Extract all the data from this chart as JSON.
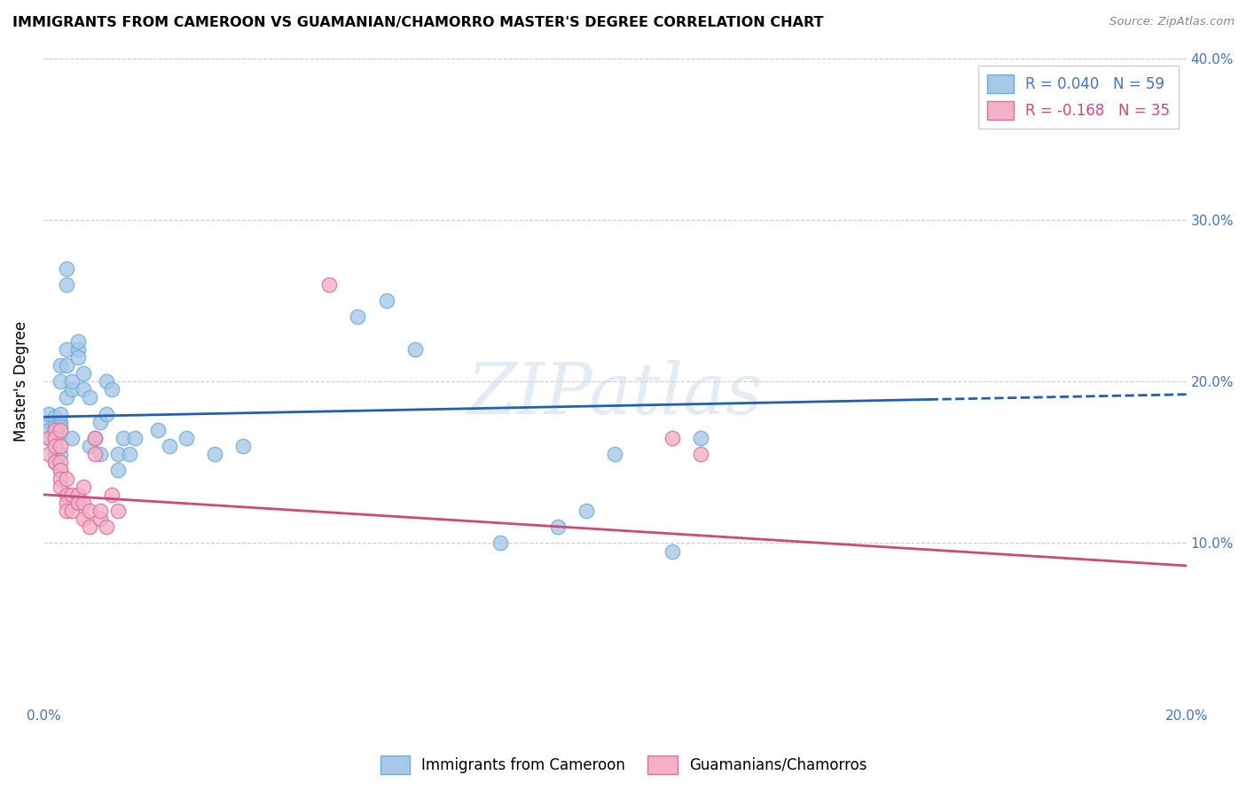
{
  "title": "IMMIGRANTS FROM CAMEROON VS GUAMANIAN/CHAMORRO MASTER'S DEGREE CORRELATION CHART",
  "source": "Source: ZipAtlas.com",
  "ylabel": "Master's Degree",
  "xlim": [
    0.0,
    0.2
  ],
  "ylim": [
    0.0,
    0.4
  ],
  "xticks": [
    0.0,
    0.05,
    0.1,
    0.15,
    0.2
  ],
  "yticks": [
    0.0,
    0.1,
    0.2,
    0.3,
    0.4
  ],
  "xtick_labels": [
    "0.0%",
    "",
    "",
    "",
    "20.0%"
  ],
  "ytick_labels_right": [
    "",
    "10.0%",
    "20.0%",
    "30.0%",
    "40.0%"
  ],
  "legend1_R": "R = 0.040",
  "legend1_N": "N = 59",
  "legend2_R": "R = -0.168",
  "legend2_N": "N = 35",
  "legend_bottom_label1": "Immigrants from Cameroon",
  "legend_bottom_label2": "Guamanians/Chamorros",
  "blue_scatter_color": "#a8c8e8",
  "blue_edge_color": "#6aaed6",
  "pink_scatter_color": "#f4b0c8",
  "pink_edge_color": "#d87098",
  "line_blue": "#2060b0",
  "line_pink": "#d04878",
  "watermark": "ZIPatlas",
  "blue_line_solid_end": 0.155,
  "blue_line_start_y": 0.178,
  "blue_line_end_y": 0.192,
  "pink_line_start_y": 0.13,
  "pink_line_end_y": 0.086,
  "blue_points_x": [
    0.001,
    0.001,
    0.001,
    0.001,
    0.002,
    0.002,
    0.002,
    0.002,
    0.002,
    0.002,
    0.002,
    0.003,
    0.003,
    0.003,
    0.003,
    0.003,
    0.003,
    0.003,
    0.003,
    0.004,
    0.004,
    0.004,
    0.004,
    0.004,
    0.005,
    0.005,
    0.005,
    0.006,
    0.006,
    0.006,
    0.007,
    0.007,
    0.008,
    0.008,
    0.009,
    0.01,
    0.01,
    0.011,
    0.011,
    0.012,
    0.013,
    0.013,
    0.014,
    0.015,
    0.016,
    0.02,
    0.022,
    0.025,
    0.03,
    0.035,
    0.055,
    0.06,
    0.065,
    0.08,
    0.09,
    0.095,
    0.1,
    0.11,
    0.115
  ],
  "blue_points_y": [
    0.175,
    0.18,
    0.17,
    0.165,
    0.178,
    0.172,
    0.168,
    0.16,
    0.155,
    0.165,
    0.15,
    0.175,
    0.18,
    0.172,
    0.168,
    0.2,
    0.21,
    0.155,
    0.145,
    0.19,
    0.26,
    0.27,
    0.21,
    0.22,
    0.195,
    0.2,
    0.165,
    0.22,
    0.215,
    0.225,
    0.195,
    0.205,
    0.19,
    0.16,
    0.165,
    0.155,
    0.175,
    0.18,
    0.2,
    0.195,
    0.145,
    0.155,
    0.165,
    0.155,
    0.165,
    0.17,
    0.16,
    0.165,
    0.155,
    0.16,
    0.24,
    0.25,
    0.22,
    0.1,
    0.11,
    0.12,
    0.155,
    0.095,
    0.165
  ],
  "pink_points_x": [
    0.001,
    0.001,
    0.002,
    0.002,
    0.002,
    0.002,
    0.003,
    0.003,
    0.003,
    0.003,
    0.003,
    0.003,
    0.004,
    0.004,
    0.004,
    0.004,
    0.005,
    0.005,
    0.006,
    0.006,
    0.007,
    0.007,
    0.007,
    0.008,
    0.008,
    0.009,
    0.009,
    0.01,
    0.01,
    0.011,
    0.012,
    0.013,
    0.05,
    0.11,
    0.115
  ],
  "pink_points_y": [
    0.165,
    0.155,
    0.17,
    0.165,
    0.16,
    0.15,
    0.17,
    0.16,
    0.15,
    0.145,
    0.14,
    0.135,
    0.13,
    0.14,
    0.125,
    0.12,
    0.13,
    0.12,
    0.13,
    0.125,
    0.115,
    0.125,
    0.135,
    0.11,
    0.12,
    0.155,
    0.165,
    0.115,
    0.12,
    0.11,
    0.13,
    0.12,
    0.26,
    0.165,
    0.155
  ]
}
